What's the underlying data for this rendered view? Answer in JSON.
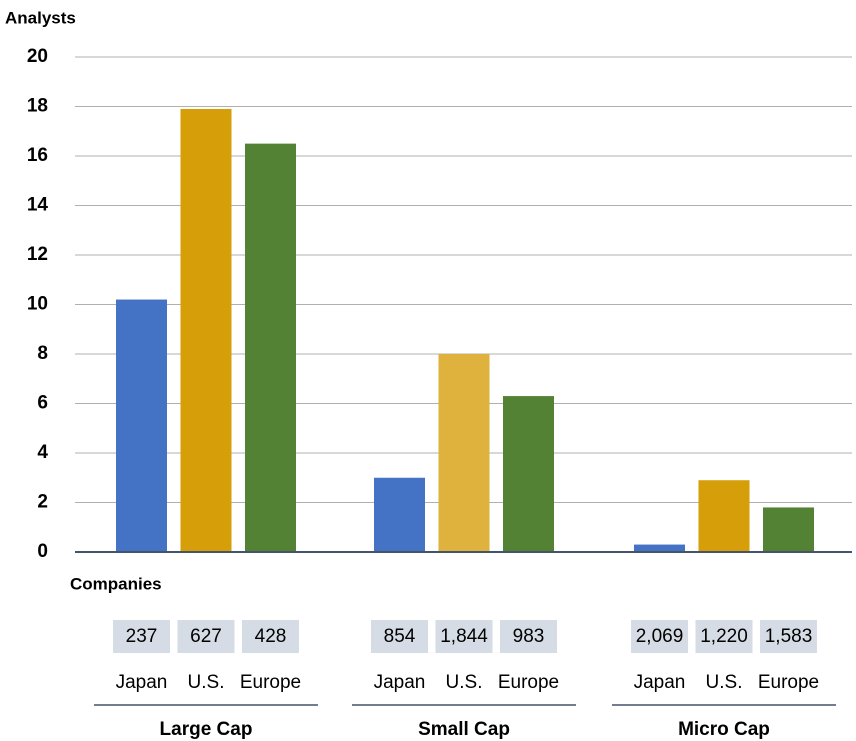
{
  "chart_data": {
    "type": "bar",
    "y_label": "Analysts",
    "companies_label": "Companies",
    "categories": [
      "Large Cap",
      "Small Cap",
      "Micro Cap"
    ],
    "series": [
      {
        "name": "Japan",
        "colors": [
          "#4472c4",
          "#4472c4",
          "#4472c4"
        ],
        "values": [
          10.2,
          3.0,
          0.3
        ],
        "companies": [
          "237",
          "854",
          "2,069"
        ]
      },
      {
        "name": "U.S.",
        "colors": [
          "#d69e09",
          "#dfb23e",
          "#d69e09"
        ],
        "values": [
          17.9,
          8.0,
          2.9
        ],
        "companies": [
          "627",
          "1,844",
          "1,220"
        ]
      },
      {
        "name": "Europe",
        "colors": [
          "#548235",
          "#548235",
          "#548235"
        ],
        "values": [
          16.5,
          6.3,
          1.8
        ],
        "companies": [
          "428",
          "983",
          "1,583"
        ]
      }
    ],
    "ylim": [
      0,
      20
    ],
    "yticks": [
      0,
      2,
      4,
      6,
      8,
      10,
      12,
      14,
      16,
      18,
      20
    ],
    "grid": true
  }
}
